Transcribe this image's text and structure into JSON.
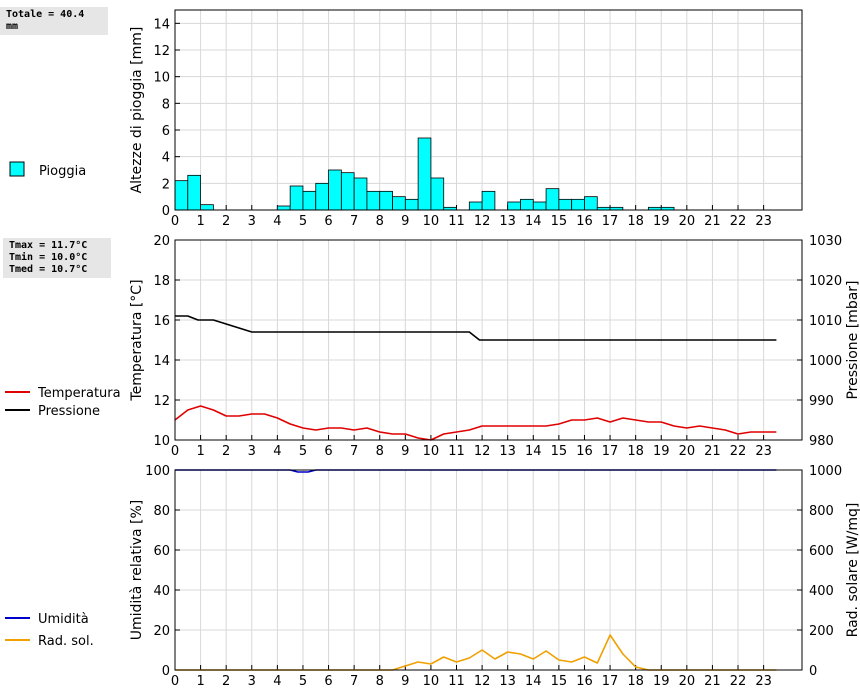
{
  "summary": {
    "rain_total": "Totale = 40.4 mm",
    "tmax": "Tmax = 11.7°C",
    "tmin": "Tmin = 10.0°C",
    "tmed": "Tmed = 10.7°C"
  },
  "chart_data": [
    {
      "type": "bar",
      "ylabel": "Altezze di pioggia [mm]",
      "ylim": [
        0,
        15
      ],
      "yticks": [
        0,
        2,
        4,
        6,
        8,
        10,
        12,
        14
      ],
      "xlim": [
        0,
        24.5
      ],
      "xticks": [
        0,
        1,
        2,
        3,
        4,
        5,
        6,
        7,
        8,
        9,
        10,
        11,
        12,
        13,
        14,
        15,
        16,
        17,
        18,
        19,
        20,
        21,
        22,
        23
      ],
      "grid": true,
      "legend": "left",
      "color": "#00ffff",
      "series": [
        {
          "name": "Pioggia",
          "x": [
            0,
            0.5,
            1,
            1.5,
            2,
            2.5,
            3,
            3.5,
            4,
            4.5,
            5,
            5.5,
            6,
            6.5,
            7,
            7.5,
            8,
            8.5,
            9,
            9.5,
            10,
            10.5,
            11,
            11.5,
            12,
            12.5,
            13,
            13.5,
            14,
            14.5,
            15,
            15.5,
            16,
            16.5,
            17,
            17.5,
            18,
            18.5,
            19,
            19.5,
            20,
            20.5,
            21,
            21.5,
            22,
            22.5,
            23,
            23.5
          ],
          "values": [
            2.2,
            2.6,
            0.4,
            0,
            0,
            0,
            0,
            0,
            0.3,
            1.8,
            1.4,
            2.0,
            3.0,
            2.8,
            2.4,
            1.4,
            1.4,
            1.0,
            0.8,
            5.4,
            2.4,
            0.2,
            0,
            0.6,
            1.4,
            0,
            0.6,
            0.8,
            0.6,
            1.6,
            0.8,
            0.8,
            1.0,
            0.2,
            0.2,
            0,
            0,
            0.2,
            0.2,
            0,
            0,
            0,
            0,
            0,
            0,
            0,
            0,
            0
          ]
        }
      ]
    },
    {
      "type": "line",
      "ylabel": "Temperatura [°C]",
      "y2label": "Pressione [mbar]",
      "ylim": [
        10,
        20
      ],
      "yticks": [
        10,
        12,
        14,
        16,
        18,
        20
      ],
      "y2lim": [
        980,
        1030
      ],
      "y2ticks": [
        980,
        990,
        1000,
        1010,
        1020,
        1030
      ],
      "xlim": [
        0,
        24.5
      ],
      "xticks": [
        0,
        1,
        2,
        3,
        4,
        5,
        6,
        7,
        8,
        9,
        10,
        11,
        12,
        13,
        14,
        15,
        16,
        17,
        18,
        19,
        20,
        21,
        22,
        23
      ],
      "grid": true,
      "legend": "left",
      "series": [
        {
          "name": "Temperatura",
          "axis": "left",
          "color": "#e00000",
          "x": [
            0,
            0.5,
            1,
            1.5,
            2,
            2.5,
            3,
            3.5,
            4,
            4.5,
            5,
            5.5,
            6,
            6.5,
            7,
            7.5,
            8,
            8.5,
            9,
            9.5,
            10,
            10.5,
            11,
            11.5,
            12,
            12.5,
            13,
            13.5,
            14,
            14.5,
            15,
            15.5,
            16,
            16.5,
            17,
            17.5,
            18,
            18.5,
            19,
            19.5,
            20,
            20.5,
            21,
            21.5,
            22,
            22.5,
            23,
            23.5
          ],
          "values": [
            11.0,
            11.5,
            11.7,
            11.5,
            11.2,
            11.2,
            11.3,
            11.3,
            11.1,
            10.8,
            10.6,
            10.5,
            10.6,
            10.6,
            10.5,
            10.6,
            10.4,
            10.3,
            10.3,
            10.1,
            10.0,
            10.3,
            10.4,
            10.5,
            10.7,
            10.7,
            10.7,
            10.7,
            10.7,
            10.7,
            10.8,
            11.0,
            11.0,
            11.1,
            10.9,
            11.1,
            11.0,
            10.9,
            10.9,
            10.7,
            10.6,
            10.7,
            10.6,
            10.5,
            10.3,
            10.4,
            10.4,
            10.4
          ]
        },
        {
          "name": "Pressione",
          "axis": "right",
          "color": "#000000",
          "x": [
            0,
            0.5,
            0.9,
            1.5,
            2,
            2.5,
            3,
            3.5,
            4,
            4.5,
            5,
            5.5,
            6,
            6.5,
            7,
            7.5,
            8,
            8.5,
            9,
            9.5,
            10,
            10.5,
            11,
            11.5,
            11.9,
            12.5,
            13,
            13.5,
            14,
            14.5,
            15,
            15.5,
            16,
            16.5,
            17,
            17.5,
            18,
            18.5,
            19,
            19.5,
            20,
            20.5,
            21,
            21.5,
            22,
            22.5,
            23,
            23.5
          ],
          "values": [
            1011,
            1011,
            1010,
            1010,
            1009,
            1008,
            1007,
            1007,
            1007,
            1007,
            1007,
            1007,
            1007,
            1007,
            1007,
            1007,
            1007,
            1007,
            1007,
            1007,
            1007,
            1007,
            1007,
            1007,
            1005,
            1005,
            1005,
            1005,
            1005,
            1005,
            1005,
            1005,
            1005,
            1005,
            1005,
            1005,
            1005,
            1005,
            1005,
            1005,
            1005,
            1005,
            1005,
            1005,
            1005,
            1005,
            1005,
            1005
          ]
        }
      ]
    },
    {
      "type": "line",
      "ylabel": "Umidità relativa [%]",
      "y2label": "Rad. solare [W/mq]",
      "ylim": [
        0,
        100
      ],
      "yticks": [
        0,
        20,
        40,
        60,
        80,
        100
      ],
      "y2lim": [
        0,
        1000
      ],
      "y2ticks": [
        0,
        200,
        400,
        600,
        800,
        1000
      ],
      "xlim": [
        0,
        24.5
      ],
      "xticks": [
        0,
        1,
        2,
        3,
        4,
        5,
        6,
        7,
        8,
        9,
        10,
        11,
        12,
        13,
        14,
        15,
        16,
        17,
        18,
        19,
        20,
        21,
        22,
        23
      ],
      "grid": true,
      "legend": "left",
      "series": [
        {
          "name": "Umidità",
          "axis": "left",
          "color": "#0000cc",
          "x": [
            0,
            0.5,
            1,
            1.5,
            2,
            2.5,
            3,
            3.5,
            4,
            4.5,
            4.8,
            5.2,
            5.5,
            6,
            6.5,
            7,
            7.5,
            8,
            8.5,
            9,
            9.5,
            10,
            10.5,
            11,
            11.5,
            12,
            12.5,
            13,
            13.5,
            14,
            14.5,
            15,
            15.5,
            16,
            16.5,
            17,
            17.5,
            18,
            18.5,
            19,
            19.5,
            20,
            20.5,
            21,
            21.5,
            22,
            22.5,
            23,
            23.5
          ],
          "values": [
            100,
            100,
            100,
            100,
            100,
            100,
            100,
            100,
            100,
            100,
            99,
            99,
            100,
            100,
            100,
            100,
            100,
            100,
            100,
            100,
            100,
            100,
            100,
            100,
            100,
            100,
            100,
            100,
            100,
            100,
            100,
            100,
            100,
            100,
            100,
            100,
            100,
            100,
            100,
            100,
            100,
            100,
            100,
            100,
            100,
            100,
            100,
            100,
            100
          ]
        },
        {
          "name": "Rad. sol.",
          "axis": "right",
          "color": "#f0a000",
          "x": [
            0,
            0.5,
            1,
            1.5,
            2,
            2.5,
            3,
            3.5,
            4,
            4.5,
            5,
            5.5,
            6,
            6.5,
            7,
            7.5,
            8,
            8.5,
            9,
            9.5,
            10,
            10.5,
            11,
            11.5,
            12,
            12.5,
            13,
            13.5,
            14,
            14.5,
            15,
            15.5,
            16,
            16.5,
            17,
            17.5,
            18,
            18.5,
            19,
            19.5,
            20,
            20.5,
            21,
            21.5,
            22,
            22.5,
            23,
            23.5
          ],
          "values": [
            0,
            0,
            0,
            0,
            0,
            0,
            0,
            0,
            0,
            0,
            0,
            0,
            0,
            0,
            0,
            0,
            0,
            0,
            20,
            40,
            30,
            65,
            40,
            60,
            100,
            55,
            90,
            80,
            55,
            95,
            50,
            40,
            65,
            35,
            175,
            80,
            15,
            0,
            0,
            0,
            0,
            0,
            0,
            0,
            0,
            0,
            0,
            0
          ]
        }
      ]
    }
  ]
}
